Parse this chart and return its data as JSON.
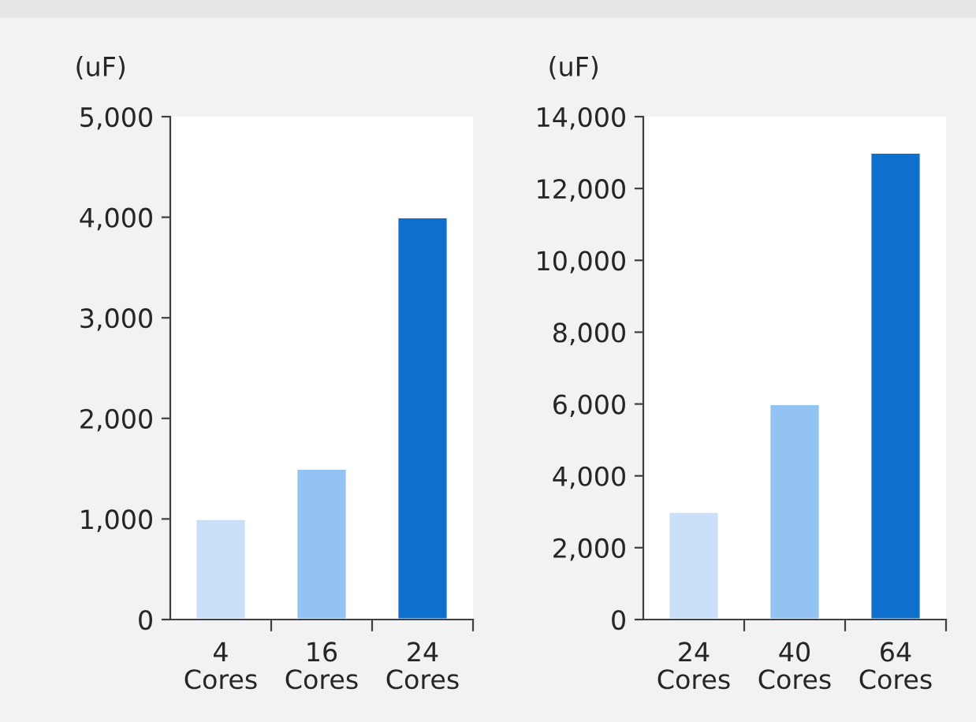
{
  "chart_data": [
    {
      "type": "bar",
      "ylabel": "(uF)",
      "categories": [
        "4\nCores",
        "16\nCores",
        "24\nCores"
      ],
      "values": [
        1000,
        1500,
        4000
      ],
      "colors": [
        "#c9e0f8",
        "#92c3f2",
        "#0f6fcc"
      ],
      "ylim": [
        0,
        5000
      ],
      "yticks": [
        {
          "value": 0,
          "label": "0"
        },
        {
          "value": 1000,
          "label": "1,000"
        },
        {
          "value": 2000,
          "label": "2,000"
        },
        {
          "value": 3000,
          "label": "3,000"
        },
        {
          "value": 4000,
          "label": "4,000"
        },
        {
          "value": 5000,
          "label": "5,000"
        }
      ],
      "grid": false,
      "legend": false
    },
    {
      "type": "bar",
      "ylabel": "(uF)",
      "categories": [
        "24\nCores",
        "40\nCores",
        "64\nCores"
      ],
      "values": [
        3000,
        6000,
        13000
      ],
      "colors": [
        "#c9e0f8",
        "#92c3f2",
        "#0f6fcc"
      ],
      "ylim": [
        0,
        14000
      ],
      "yticks": [
        {
          "value": 0,
          "label": "0"
        },
        {
          "value": 2000,
          "label": "2,000"
        },
        {
          "value": 4000,
          "label": "4,000"
        },
        {
          "value": 6000,
          "label": "6,000"
        },
        {
          "value": 8000,
          "label": "8,000"
        },
        {
          "value": 10000,
          "label": "10,000"
        },
        {
          "value": 12000,
          "label": "12,000"
        },
        {
          "value": 14000,
          "label": "14,000"
        }
      ],
      "grid": false,
      "legend": false
    }
  ]
}
